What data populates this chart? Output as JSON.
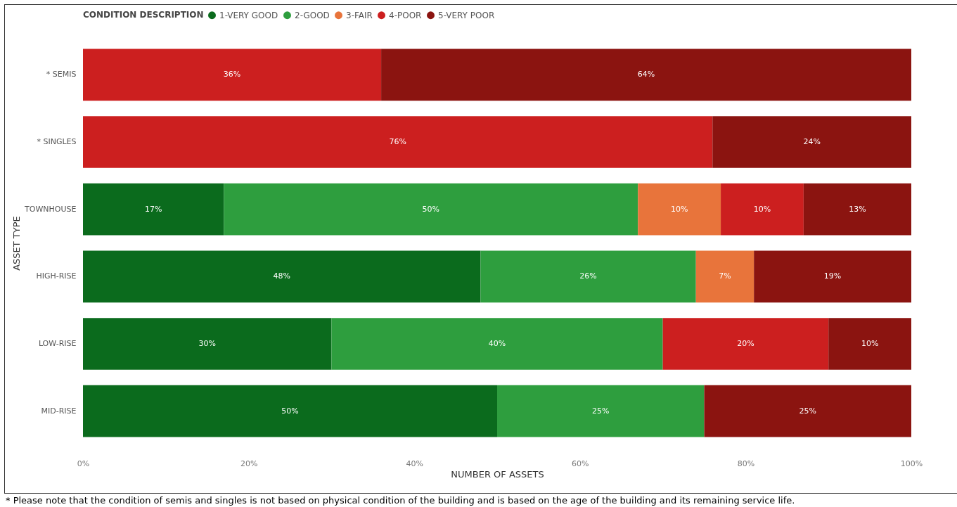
{
  "chart_data": {
    "type": "bar",
    "orientation": "horizontal",
    "stacked": true,
    "ylabel": "ASSET TYPE",
    "xlabel": "NUMBER OF ASSETS",
    "legend_title": "CONDITION DESCRIPTION",
    "legend": "top left",
    "grid": false,
    "categories": [
      "* SEMIS",
      "* SINGLES",
      "TOWNHOUSE",
      "HIGH-RISE",
      "LOW-RISE",
      "MID-RISE"
    ],
    "xlim": [
      0,
      100
    ],
    "xticks": [
      {
        "value": 0,
        "label": "0%"
      },
      {
        "value": 20,
        "label": "20%"
      },
      {
        "value": 40,
        "label": "40%"
      },
      {
        "value": 60,
        "label": "60%"
      },
      {
        "value": 80,
        "label": "80%"
      },
      {
        "value": 100,
        "label": "100%"
      }
    ],
    "series": [
      {
        "name": "1-VERY GOOD",
        "color": "#0b6b1d",
        "values": [
          null,
          null,
          17,
          48,
          30,
          50
        ],
        "value_labels": [
          null,
          null,
          "17%",
          "48%",
          "30%",
          "50%"
        ]
      },
      {
        "name": "2-GOOD",
        "color": "#2e9e3e",
        "values": [
          null,
          null,
          50,
          26,
          40,
          25
        ],
        "value_labels": [
          null,
          null,
          "50%",
          "26%",
          "40%",
          "25%"
        ]
      },
      {
        "name": "3-FAIR",
        "color": "#e8743b",
        "values": [
          null,
          null,
          10,
          7,
          null,
          null
        ],
        "value_labels": [
          null,
          null,
          "10%",
          "7%",
          null,
          null
        ]
      },
      {
        "name": "4-POOR",
        "color": "#cc1f1f",
        "values": [
          36,
          76,
          10,
          null,
          20,
          null
        ],
        "value_labels": [
          "36%",
          "76%",
          "10%",
          null,
          "20%",
          null
        ]
      },
      {
        "name": "5-VERY POOR",
        "color": "#8b1410",
        "values": [
          64,
          24,
          13,
          19,
          10,
          25
        ],
        "value_labels": [
          "64%",
          "24%",
          "13%",
          "19%",
          "10%",
          "25%"
        ]
      }
    ],
    "annotations": [
      "* Please note that the condition of semis and singles is not based on physical condition of the building and is based on the age of the building and its remaining service life."
    ]
  }
}
